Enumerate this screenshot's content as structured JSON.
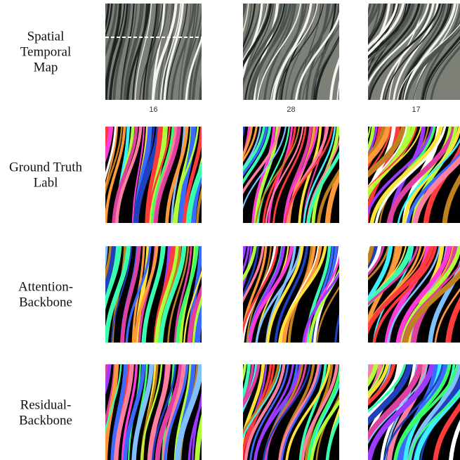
{
  "rows": [
    {
      "label": [
        "Spatial",
        "Temporal",
        "Map"
      ]
    },
    {
      "label": [
        "Ground Truth",
        "Labl"
      ]
    },
    {
      "label": [
        "Attention-",
        "Backbone"
      ]
    },
    {
      "label": [
        "Residual-",
        "Backbone"
      ]
    }
  ],
  "columns": [
    {
      "label": "16"
    },
    {
      "label": "28"
    },
    {
      "label": "17"
    }
  ]
}
